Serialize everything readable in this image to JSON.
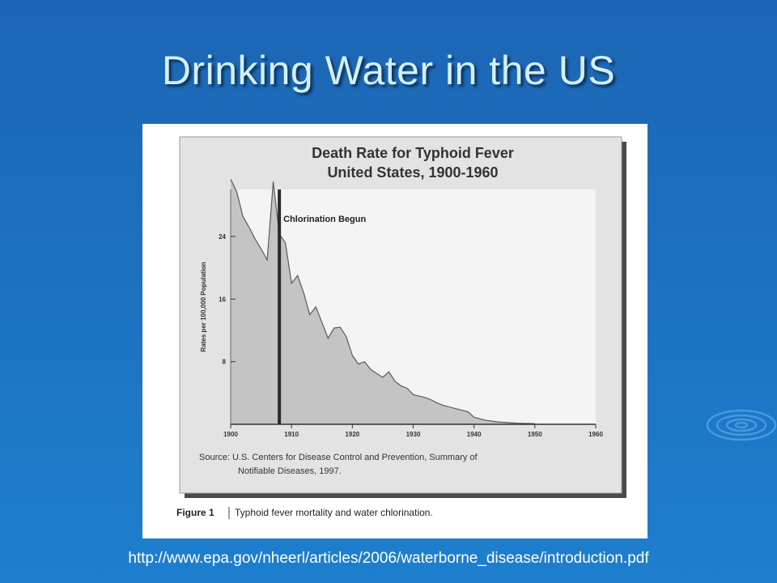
{
  "slide": {
    "title": "Drinking Water in the US",
    "url": "http://www.epa.gov/nheerl/articles/2006/waterborne_disease/introduction.pdf"
  },
  "figure": {
    "caption_label": "Figure 1",
    "caption_text": "Typhoid fever mortality and water chlorination.",
    "source_line1": "Source: U.S. Centers for Disease Control and Prevention, Summary of",
    "source_line2": "Notifiable Diseases, 1997."
  },
  "chart_data": {
    "type": "area",
    "title": "Death Rate for Typhoid Fever",
    "subtitle": "United States, 1900-1960",
    "xlabel": "",
    "ylabel": "Rates per 100,000 Population",
    "xlim": [
      1900,
      1960
    ],
    "ylim": [
      0,
      30
    ],
    "xticks": [
      1900,
      1910,
      1920,
      1930,
      1940,
      1950,
      1960
    ],
    "yticks": [
      8,
      16,
      24
    ],
    "grid": false,
    "annotation": {
      "x": 1908,
      "label": "Chlorination Begun"
    },
    "fill_color": "#c4c4c4",
    "series": [
      {
        "x": [
          1900,
          1901,
          1902,
          1903,
          1904,
          1905,
          1906,
          1907,
          1908,
          1909,
          1910,
          1911,
          1912,
          1913,
          1914,
          1915,
          1916,
          1917,
          1918,
          1919,
          1920,
          1921,
          1922,
          1923,
          1924,
          1925,
          1926,
          1927,
          1928,
          1929,
          1930,
          1931,
          1932,
          1933,
          1934,
          1935,
          1936,
          1937,
          1938,
          1939,
          1940,
          1941,
          1942,
          1943,
          1944,
          1945,
          1946,
          1947,
          1948,
          1949,
          1950
        ],
        "y": [
          31.3,
          29.7,
          26.6,
          25.2,
          23.7,
          22.4,
          21.0,
          31.0,
          24.3,
          23.2,
          18.0,
          19.0,
          16.8,
          14.0,
          15.0,
          13.0,
          11.0,
          12.3,
          12.4,
          11.2,
          8.8,
          7.7,
          8.0,
          7.0,
          6.5,
          6.0,
          6.7,
          5.5,
          4.9,
          4.6,
          3.8,
          3.6,
          3.4,
          3.1,
          2.7,
          2.4,
          2.2,
          2.0,
          1.8,
          1.6,
          0.9,
          0.7,
          0.5,
          0.4,
          0.3,
          0.25,
          0.2,
          0.15,
          0.12,
          0.1,
          0.08
        ]
      }
    ]
  }
}
